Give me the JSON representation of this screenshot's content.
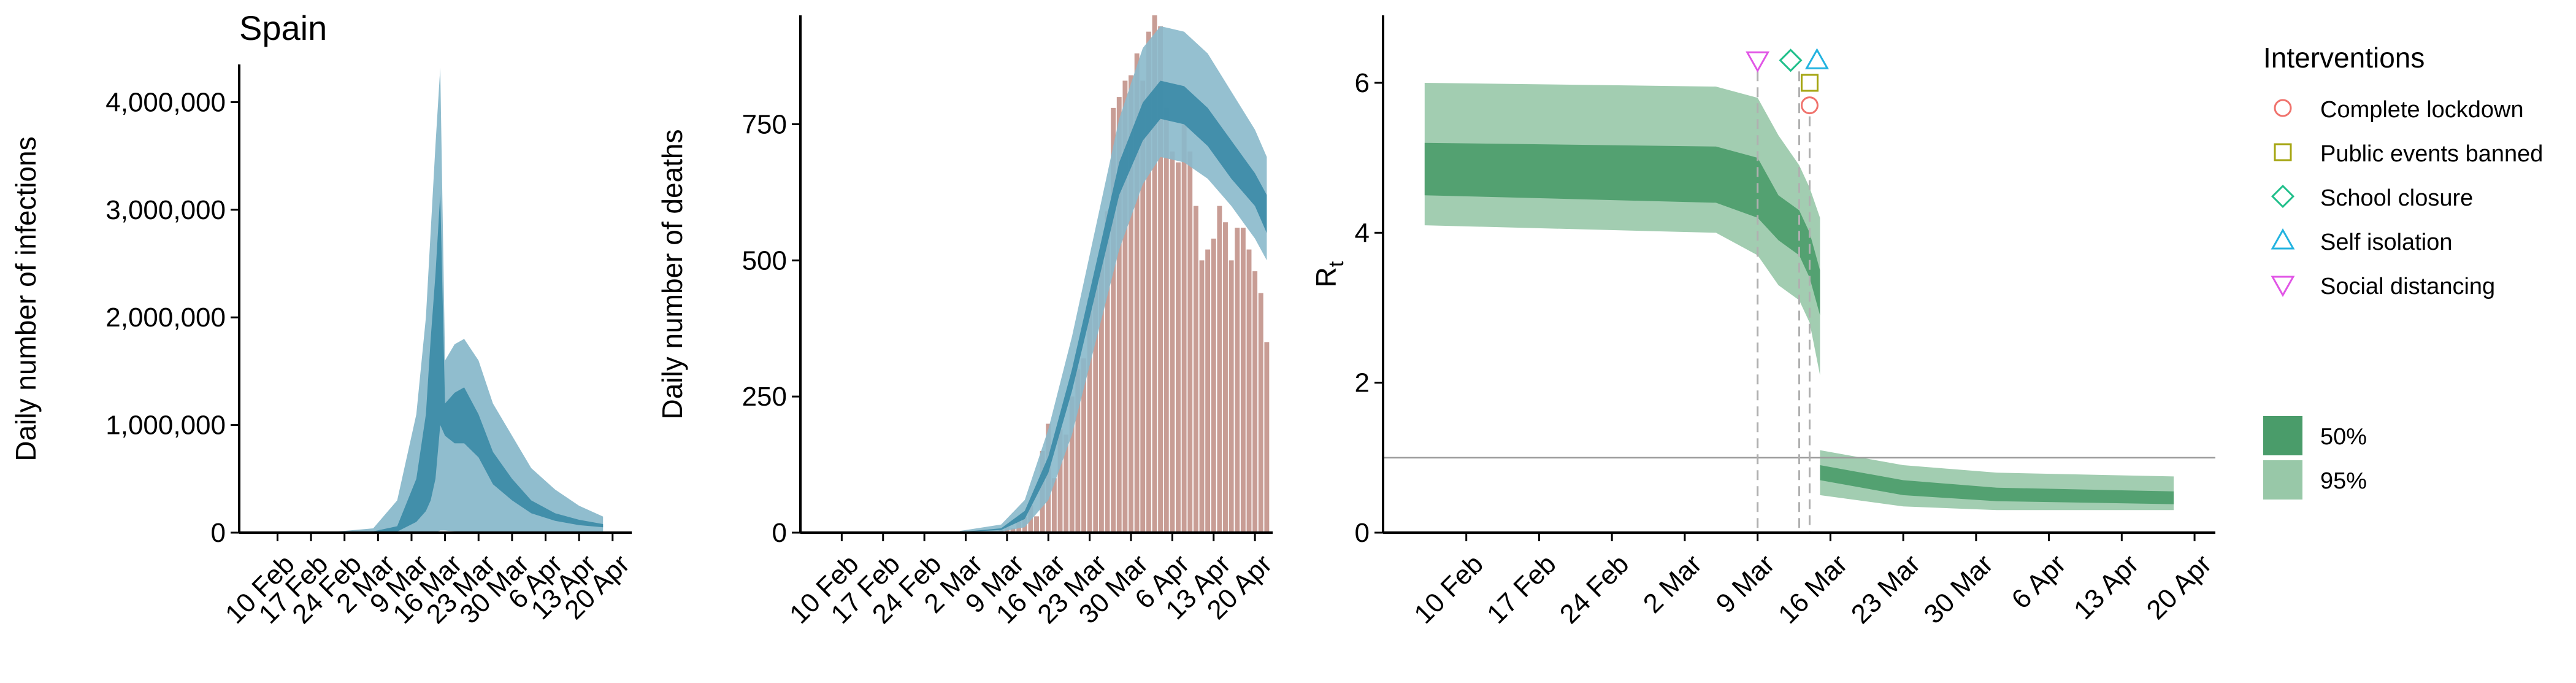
{
  "title": "Spain",
  "colors": {
    "infections_dark": "#3a8aa6",
    "infections_light": "#8ab9cb",
    "deaths_bar": "#c89d95",
    "rt_dark": "#4a9c6a",
    "rt_light": "#98c8a8",
    "complete_lockdown": "#f0726c",
    "public_events_banned": "#a5a511",
    "school_closure": "#1fbf8a",
    "self_isolation": "#22b3e0",
    "social_distancing": "#e155e6"
  },
  "chart_data": [
    {
      "type": "area",
      "ylabel": "Daily number of infections",
      "ylim": [
        0,
        4350000
      ],
      "yticks": [
        0,
        1000000,
        2000000,
        3000000,
        4000000
      ],
      "ytick_labels": [
        "0",
        "1,000,000",
        "2,000,000",
        "3,000,000",
        "4,000,000"
      ],
      "xtick_labels": [
        "10 Feb",
        "17 Feb",
        "24 Feb",
        "2 Mar",
        "9 Mar",
        "16 Mar",
        "23 Mar",
        "30 Mar",
        "6 Apr",
        "13 Apr",
        "20 Apr"
      ],
      "x_dates": [
        "2020-02-05",
        "2020-02-20",
        "2020-03-01",
        "2020-03-06",
        "2020-03-10",
        "2020-03-12",
        "2020-03-13",
        "2020-03-14",
        "2020-03-15",
        "2020-03-16",
        "2020-03-18",
        "2020-03-20",
        "2020-03-23",
        "2020-03-26",
        "2020-03-30",
        "2020-04-03",
        "2020-04-08",
        "2020-04-13",
        "2020-04-18"
      ],
      "series": [
        {
          "band": "95%",
          "lower": [
            0,
            0,
            0,
            0,
            2000,
            3000,
            3000,
            3000,
            20000,
            20000,
            12000,
            10000,
            8000,
            6000,
            5000,
            3000,
            2000,
            1000,
            500
          ],
          "upper": [
            0,
            500,
            40000,
            300000,
            1100000,
            2000000,
            2800000,
            3600000,
            4320000,
            1600000,
            1750000,
            1800000,
            1600000,
            1200000,
            900000,
            600000,
            400000,
            250000,
            150000
          ]
        },
        {
          "band": "50%",
          "lower": [
            0,
            0,
            2000,
            10000,
            100000,
            200000,
            300000,
            500000,
            1000000,
            900000,
            830000,
            830000,
            700000,
            450000,
            300000,
            180000,
            110000,
            70000,
            50000
          ],
          "upper": [
            0,
            0,
            12000,
            60000,
            500000,
            1100000,
            1800000,
            2400000,
            3150000,
            1200000,
            1300000,
            1350000,
            1100000,
            750000,
            500000,
            300000,
            180000,
            120000,
            80000
          ]
        }
      ]
    },
    {
      "type": "bar",
      "ylabel": "Daily number of deaths",
      "ylim": [
        0,
        950
      ],
      "yticks": [
        0,
        250,
        500,
        750
      ],
      "ytick_labels": [
        "0",
        "250",
        "500",
        "750"
      ],
      "xtick_labels": [
        "10 Feb",
        "17 Feb",
        "24 Feb",
        "2 Mar",
        "9 Mar",
        "16 Mar",
        "23 Mar",
        "30 Mar",
        "6 Apr",
        "13 Apr",
        "20 Apr"
      ],
      "bars": [
        {
          "date": "2020-03-03",
          "value": 1
        },
        {
          "date": "2020-03-06",
          "value": 2
        },
        {
          "date": "2020-03-08",
          "value": 5
        },
        {
          "date": "2020-03-09",
          "value": 10
        },
        {
          "date": "2020-03-10",
          "value": 8
        },
        {
          "date": "2020-03-11",
          "value": 20
        },
        {
          "date": "2020-03-12",
          "value": 30
        },
        {
          "date": "2020-03-13",
          "value": 50
        },
        {
          "date": "2020-03-14",
          "value": 30
        },
        {
          "date": "2020-03-15",
          "value": 150
        },
        {
          "date": "2020-03-16",
          "value": 200
        },
        {
          "date": "2020-03-17",
          "value": 100
        },
        {
          "date": "2020-03-18",
          "value": 190
        },
        {
          "date": "2020-03-19",
          "value": 180
        },
        {
          "date": "2020-03-20",
          "value": 250
        },
        {
          "date": "2020-03-21",
          "value": 300
        },
        {
          "date": "2020-03-22",
          "value": 320
        },
        {
          "date": "2020-03-23",
          "value": 430
        },
        {
          "date": "2020-03-24",
          "value": 470
        },
        {
          "date": "2020-03-25",
          "value": 510
        },
        {
          "date": "2020-03-26",
          "value": 590
        },
        {
          "date": "2020-03-27",
          "value": 780
        },
        {
          "date": "2020-03-28",
          "value": 800
        },
        {
          "date": "2020-03-29",
          "value": 830
        },
        {
          "date": "2020-03-30",
          "value": 840
        },
        {
          "date": "2020-03-31",
          "value": 880
        },
        {
          "date": "2020-04-01",
          "value": 830
        },
        {
          "date": "2020-04-02",
          "value": 920
        },
        {
          "date": "2020-04-03",
          "value": 950
        },
        {
          "date": "2020-04-04",
          "value": 930
        },
        {
          "date": "2020-04-05",
          "value": 780
        },
        {
          "date": "2020-04-06",
          "value": 700
        },
        {
          "date": "2020-04-07",
          "value": 680
        },
        {
          "date": "2020-04-08",
          "value": 750
        },
        {
          "date": "2020-04-09",
          "value": 700
        },
        {
          "date": "2020-04-10",
          "value": 600
        },
        {
          "date": "2020-04-11",
          "value": 500
        },
        {
          "date": "2020-04-12",
          "value": 520
        },
        {
          "date": "2020-04-13",
          "value": 540
        },
        {
          "date": "2020-04-14",
          "value": 600
        },
        {
          "date": "2020-04-15",
          "value": 570
        },
        {
          "date": "2020-04-16",
          "value": 500
        },
        {
          "date": "2020-04-17",
          "value": 560
        },
        {
          "date": "2020-04-18",
          "value": 560
        },
        {
          "date": "2020-04-19",
          "value": 520
        },
        {
          "date": "2020-04-20",
          "value": 480
        },
        {
          "date": "2020-04-21",
          "value": 440
        },
        {
          "date": "2020-04-22",
          "value": 350
        }
      ],
      "x_dates": [
        "2020-03-01",
        "2020-03-08",
        "2020-03-12",
        "2020-03-16",
        "2020-03-20",
        "2020-03-24",
        "2020-03-28",
        "2020-04-01",
        "2020-04-04",
        "2020-04-08",
        "2020-04-12",
        "2020-04-16",
        "2020-04-20",
        "2020-04-22"
      ],
      "series": [
        {
          "band": "95%",
          "lower": [
            0,
            2,
            10,
            60,
            180,
            350,
            520,
            640,
            690,
            680,
            650,
            600,
            540,
            500
          ],
          "upper": [
            3,
            15,
            60,
            190,
            360,
            560,
            760,
            890,
            930,
            920,
            880,
            810,
            740,
            690
          ]
        },
        {
          "band": "50%",
          "lower": [
            1,
            5,
            25,
            110,
            260,
            440,
            620,
            720,
            760,
            750,
            710,
            650,
            600,
            550
          ],
          "upper": [
            1,
            8,
            40,
            140,
            300,
            490,
            680,
            790,
            830,
            820,
            780,
            720,
            660,
            620
          ]
        }
      ]
    },
    {
      "type": "area",
      "ylabel": "R",
      "ylabel_sub": "t",
      "ylim": [
        0,
        6.9
      ],
      "yticks": [
        0,
        2,
        4,
        6
      ],
      "ytick_labels": [
        "0",
        "2",
        "4",
        "6"
      ],
      "xtick_labels": [
        "10 Feb",
        "17 Feb",
        "24 Feb",
        "2 Mar",
        "9 Mar",
        "16 Mar",
        "23 Mar",
        "30 Mar",
        "6 Apr",
        "13 Apr",
        "20 Apr"
      ],
      "reference_line": 1,
      "x_dates": [
        "2020-02-06",
        "2020-03-05",
        "2020-03-09",
        "2020-03-11",
        "2020-03-13",
        "2020-03-14",
        "2020-03-15",
        "2020-03-15",
        "2020-03-23",
        "2020-04-01",
        "2020-04-18"
      ],
      "series": [
        {
          "band": "95%",
          "lower": [
            4.1,
            4.0,
            3.7,
            3.3,
            3.1,
            2.8,
            2.1,
            0.5,
            0.35,
            0.3,
            0.3
          ],
          "upper": [
            6.0,
            5.95,
            5.8,
            5.3,
            4.9,
            4.6,
            4.2,
            1.1,
            0.9,
            0.8,
            0.75
          ]
        },
        {
          "band": "50%",
          "lower": [
            4.5,
            4.4,
            4.2,
            3.9,
            3.7,
            3.4,
            2.9,
            0.7,
            0.5,
            0.42,
            0.38
          ],
          "upper": [
            5.2,
            5.15,
            5.0,
            4.5,
            4.3,
            4.0,
            3.5,
            0.9,
            0.7,
            0.6,
            0.55
          ]
        }
      ],
      "interventions": [
        {
          "name": "Complete lockdown",
          "date": "2020-03-14",
          "marker": "circle",
          "value": 5.7
        },
        {
          "name": "Public events banned",
          "date": "2020-03-14",
          "marker": "square",
          "value": 6.0
        },
        {
          "name": "School closure",
          "date": "2020-03-13",
          "marker": "diamond",
          "value": 6.3
        },
        {
          "name": "Self isolation",
          "date": "2020-03-14",
          "marker": "triangle-up",
          "value": 6.3
        },
        {
          "name": "Social distancing",
          "date": "2020-03-09",
          "marker": "triangle-down",
          "value": 6.3
        }
      ]
    }
  ],
  "legend": {
    "title": "Interventions",
    "items": [
      {
        "label": "Complete lockdown",
        "marker": "circle",
        "color_key": "complete_lockdown"
      },
      {
        "label": "Public events banned",
        "marker": "square",
        "color_key": "public_events_banned"
      },
      {
        "label": "School closure",
        "marker": "diamond",
        "color_key": "school_closure"
      },
      {
        "label": "Self isolation",
        "marker": "triangle-up",
        "color_key": "self_isolation"
      },
      {
        "label": "Social distancing",
        "marker": "triangle-down",
        "color_key": "social_distancing"
      }
    ],
    "bands": [
      {
        "label": "50%",
        "color_key": "rt_dark"
      },
      {
        "label": "95%",
        "color_key": "rt_light"
      }
    ]
  }
}
